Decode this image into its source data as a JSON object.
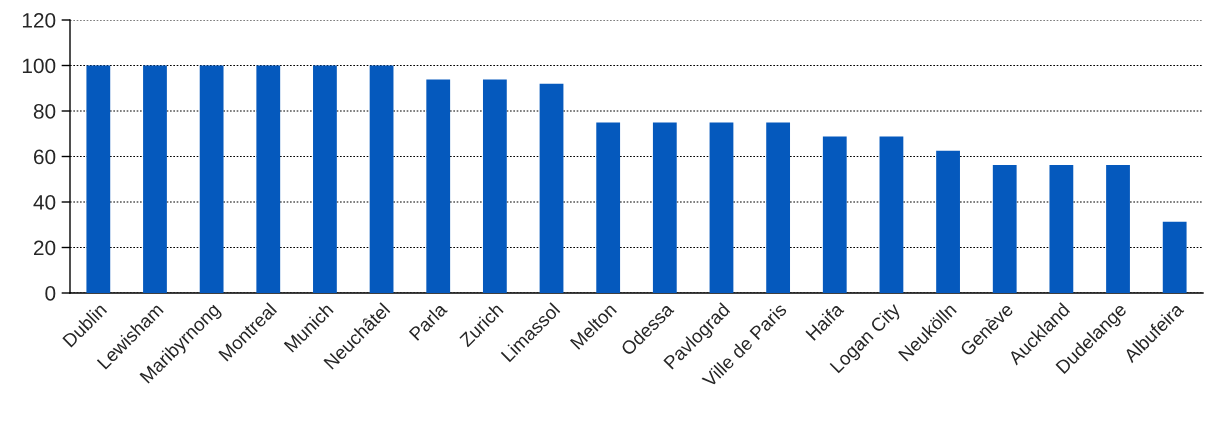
{
  "chart_data": {
    "type": "bar",
    "categories": [
      "Dublin",
      "Lewisham",
      "Maribyrnong",
      "Montreal",
      "Munich",
      "Neuchâtel",
      "Parla",
      "Zurich",
      "Limassol",
      "Melton",
      "Odessa",
      "Pavlograd",
      "Ville de Paris",
      "Haifa",
      "Logan City",
      "Neukölln",
      "Genève",
      "Auckland",
      "Dudelange",
      "Albufeira"
    ],
    "values": [
      100,
      100,
      100,
      100,
      100,
      100,
      93.8,
      93.8,
      92,
      75,
      75,
      75,
      75,
      68.8,
      68.8,
      62.5,
      56.3,
      56.3,
      56.3,
      31.3
    ],
    "color": "#0559bd",
    "ylim": [
      0,
      120
    ],
    "yticks": [
      0,
      20,
      40,
      60,
      80,
      100,
      120
    ],
    "grid": "y",
    "legend": false
  }
}
